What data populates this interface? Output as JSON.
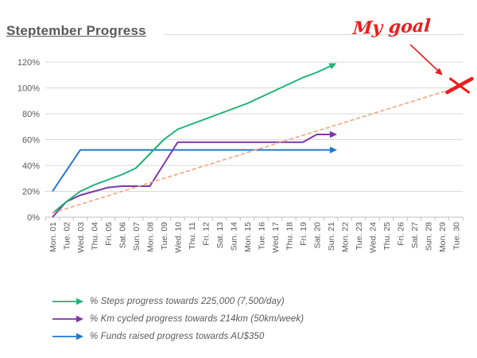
{
  "title": "Steptember Progress",
  "colors": {
    "grid": "#d9d9d9",
    "axis": "#bfbfbf",
    "label_text": "#595959",
    "annotation_red": "#ee1c1c"
  },
  "chart_data": {
    "type": "line",
    "title": "Steptember Progress",
    "xlabel": "",
    "ylabel": "",
    "ylim": [
      0,
      120
    ],
    "grid": true,
    "legend_position": "bottom-left",
    "y_ticks": [
      "0%",
      "20%",
      "40%",
      "60%",
      "80%",
      "100%",
      "120%"
    ],
    "x_labels": [
      "Mon. 01",
      "Tue. 02",
      "Wed. 03",
      "Thu. 04",
      "Fri. 05",
      "Sat. 06",
      "Sun. 07",
      "Mon. 08",
      "Tue. 09",
      "Wed. 10",
      "Thu. 11",
      "Fri. 12",
      "Sat. 13",
      "Sun. 14",
      "Mon. 15",
      "Tue. 16",
      "Wed. 17",
      "Thu. 18",
      "Fri. 19",
      "Sat. 20",
      "Sun. 21",
      "Mon. 22",
      "Tue. 23",
      "Wed. 24",
      "Thu. 25",
      "Fri. 26",
      "Sat. 27",
      "Sun. 28",
      "Mon. 29",
      "Tue. 30"
    ],
    "series": [
      {
        "name": "% Funds raised progress towards AU$350",
        "color": "#2076ce",
        "in_legend": true,
        "legend_order": 2,
        "values": [
          20,
          36,
          52,
          52,
          52,
          52,
          52,
          52,
          52,
          52,
          52,
          52,
          52,
          52,
          52,
          52,
          52,
          52,
          52,
          52,
          52
        ]
      },
      {
        "name": "% Km cycled progress towards 214km (50km/week)",
        "color": "#7e35ad",
        "in_legend": true,
        "legend_order": 1,
        "values": [
          0,
          12,
          17,
          20,
          23,
          24,
          24,
          24,
          41,
          58,
          58,
          58,
          58,
          58,
          58,
          58,
          58,
          58,
          58,
          64,
          64
        ]
      },
      {
        "name": "% Steps progress towards 225,000 (7,500/day)",
        "color": "#1eb473",
        "in_legend": true,
        "legend_order": 0,
        "values": [
          3,
          12,
          20,
          25,
          29,
          33,
          38,
          49,
          60,
          68,
          72,
          76,
          80,
          84,
          88,
          93,
          98,
          103,
          108,
          112,
          117
        ]
      },
      {
        "name": "goal-pace-line",
        "color": "#f2a37b",
        "dashed": true,
        "in_legend": false,
        "points": [
          {
            "x": "Mon. 01",
            "y": 3.3
          },
          {
            "x": "Tue. 30",
            "y": 100
          }
        ]
      }
    ],
    "goal_annotation": {
      "text": "My goal",
      "color": "#ee1c1c",
      "marker": "red-x",
      "marker_at": {
        "x": "Tue. 30",
        "y": 100
      }
    }
  }
}
